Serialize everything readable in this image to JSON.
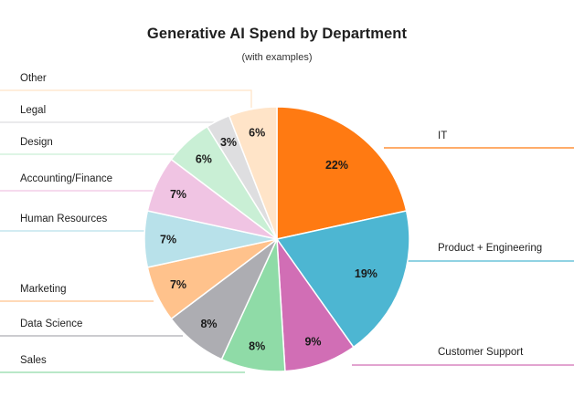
{
  "chart_data": {
    "type": "pie",
    "title": "Generative AI Spend by Department",
    "subtitle": "(with examples)",
    "slices": [
      {
        "label": "IT",
        "value": 22,
        "pct_text": "22%",
        "color": "#ff7a12"
      },
      {
        "label": "Product + Engineering",
        "value": 19,
        "pct_text": "19%",
        "color": "#4db6d2"
      },
      {
        "label": "Customer Support",
        "value": 9,
        "pct_text": "9%",
        "color": "#d16eb5"
      },
      {
        "label": "Sales",
        "value": 8,
        "pct_text": "8%",
        "color": "#8fdba7"
      },
      {
        "label": "Data Science",
        "value": 8,
        "pct_text": "8%",
        "color": "#adadb2"
      },
      {
        "label": "Marketing",
        "value": 7,
        "pct_text": "7%",
        "color": "#ffc28c"
      },
      {
        "label": "Human Resources",
        "value": 7,
        "pct_text": "7%",
        "color": "#b8e1ea"
      },
      {
        "label": "Accounting/Finance",
        "value": 7,
        "pct_text": "7%",
        "color": "#f0c4e3"
      },
      {
        "label": "Design",
        "value": 6,
        "pct_text": "6%",
        "color": "#c9efd5"
      },
      {
        "label": "Legal",
        "value": 3,
        "pct_text": "3%",
        "color": "#dedee0"
      },
      {
        "label": "Other",
        "value": 6,
        "pct_text": "6%",
        "color": "#ffe4c8"
      }
    ]
  }
}
